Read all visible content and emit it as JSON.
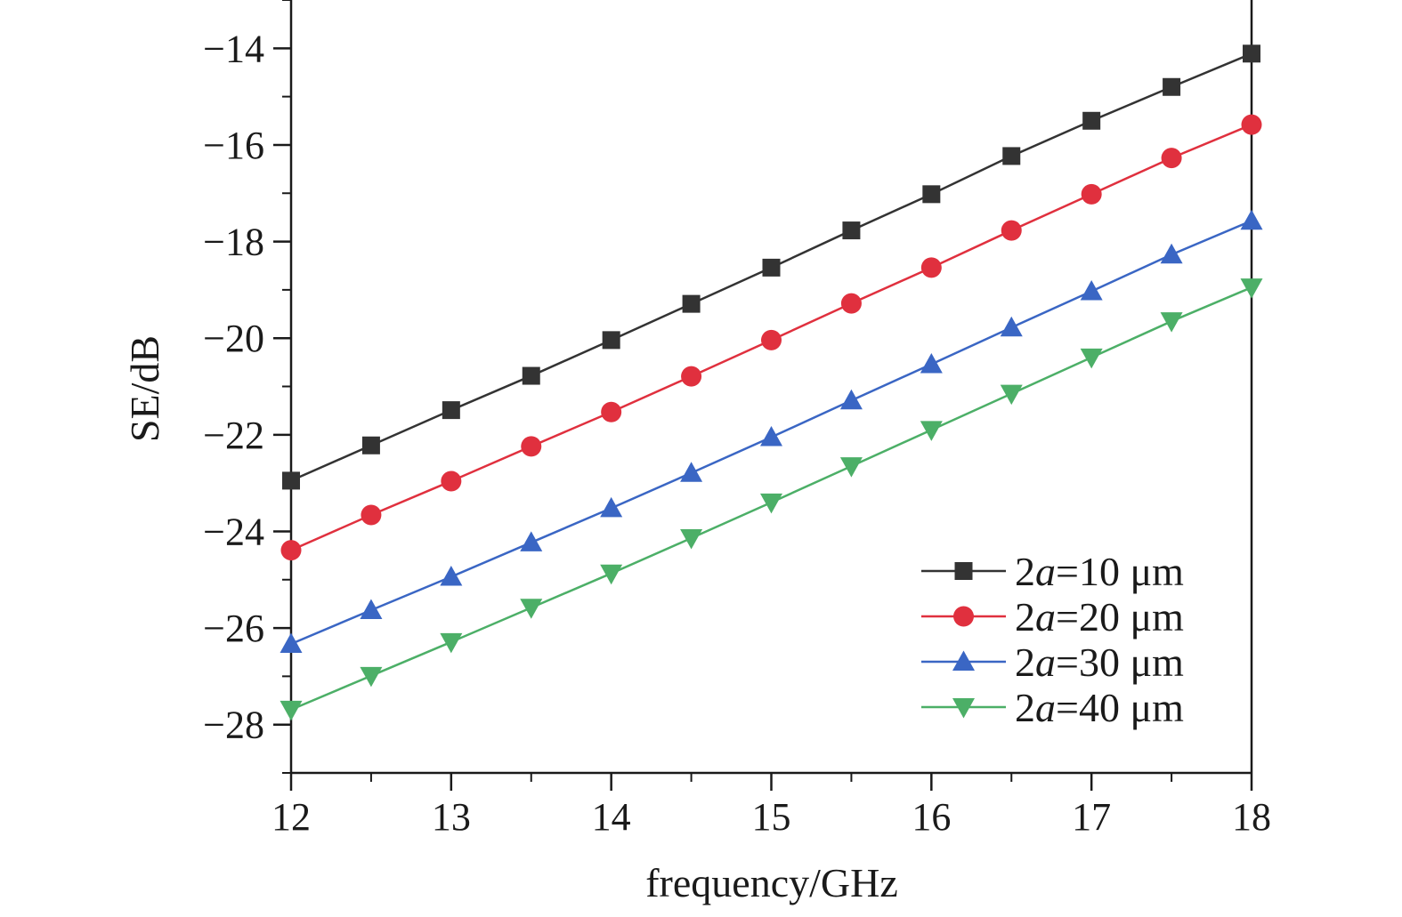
{
  "chart_data": {
    "type": "line",
    "xlabel": "frequency/GHz",
    "ylabel": "SE/dB",
    "xlim": [
      12,
      18
    ],
    "ylim": [
      -29,
      -13
    ],
    "xticks": [
      12,
      13,
      14,
      15,
      16,
      17,
      18
    ],
    "xtick_labels": [
      "12",
      "13",
      "14",
      "15",
      "16",
      "17",
      "18"
    ],
    "yticks": [
      -28,
      -26,
      -24,
      -22,
      -20,
      -18,
      -16,
      -14
    ],
    "ytick_labels": [
      "−28",
      "−26",
      "−24",
      "−22",
      "−20",
      "−18",
      "−16",
      "−14"
    ],
    "grid": false,
    "legend_position": "bottom-right",
    "x": [
      12,
      12.5,
      13,
      13.5,
      14,
      14.5,
      15,
      15.5,
      16,
      16.5,
      17,
      17.5,
      18
    ],
    "series": [
      {
        "name_prefix": "2",
        "name_italic": "a",
        "name_suffix": "=10 μm",
        "color": "#333333",
        "marker": "square",
        "values": [
          -22.95,
          -22.22,
          -21.49,
          -20.78,
          -20.04,
          -19.29,
          -18.54,
          -17.77,
          -17.02,
          -16.23,
          -15.5,
          -14.8,
          -14.11
        ]
      },
      {
        "name_prefix": "2",
        "name_italic": "a",
        "name_suffix": "=20 μm",
        "color": "#e0303e",
        "marker": "circle",
        "values": [
          -24.39,
          -23.66,
          -22.96,
          -22.24,
          -21.53,
          -20.79,
          -20.04,
          -19.28,
          -18.54,
          -17.77,
          -17.02,
          -16.27,
          -15.58
        ]
      },
      {
        "name_prefix": "2",
        "name_italic": "a",
        "name_suffix": "=30 μm",
        "color": "#3a66c4",
        "marker": "triangle-up",
        "values": [
          -26.33,
          -25.63,
          -24.94,
          -24.23,
          -23.52,
          -22.79,
          -22.05,
          -21.29,
          -20.54,
          -19.78,
          -19.03,
          -18.27,
          -17.57
        ]
      },
      {
        "name_prefix": "2",
        "name_italic": "a",
        "name_suffix": "=40 μm",
        "color": "#4caf67",
        "marker": "triangle-down",
        "values": [
          -27.69,
          -26.99,
          -26.29,
          -25.58,
          -24.87,
          -24.14,
          -23.4,
          -22.65,
          -21.9,
          -21.15,
          -20.4,
          -19.65,
          -18.95
        ]
      }
    ]
  }
}
